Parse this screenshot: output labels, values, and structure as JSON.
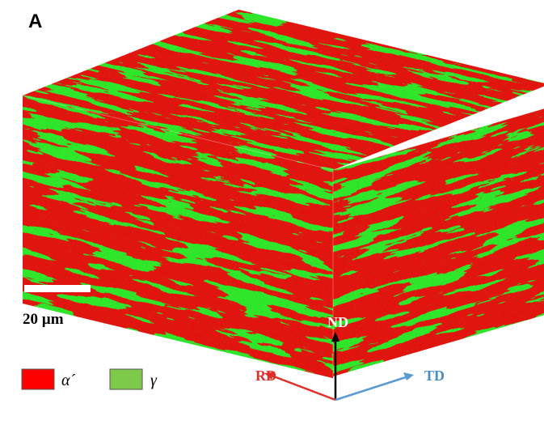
{
  "panel_label": "A",
  "scale_bar": {
    "label": "20 µm"
  },
  "legend": [
    {
      "label": "α´",
      "color": "#ff0000"
    },
    {
      "label": "γ",
      "color": "#7dc94a"
    }
  ],
  "axes": {
    "nd": "ND",
    "rd": "RD",
    "td": "TD"
  }
}
